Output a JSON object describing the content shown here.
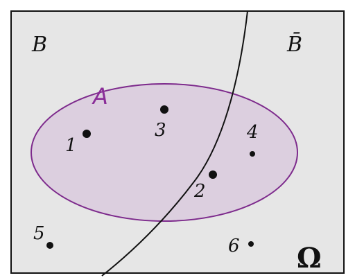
{
  "diagram": {
    "universe_label": "Ω",
    "set_b_label": "B",
    "set_b_complement_label": "B̄",
    "set_a_label": "A",
    "points": [
      {
        "label": "1"
      },
      {
        "label": "2"
      },
      {
        "label": "3"
      },
      {
        "label": "4"
      },
      {
        "label": "5"
      },
      {
        "label": "6"
      }
    ]
  },
  "colors": {
    "background": "#e6e6e6",
    "set_a_fill": "#dccfdf",
    "set_a_stroke": "#7d2a8c",
    "set_a_label": "#8a2d98",
    "ink": "#111111"
  }
}
